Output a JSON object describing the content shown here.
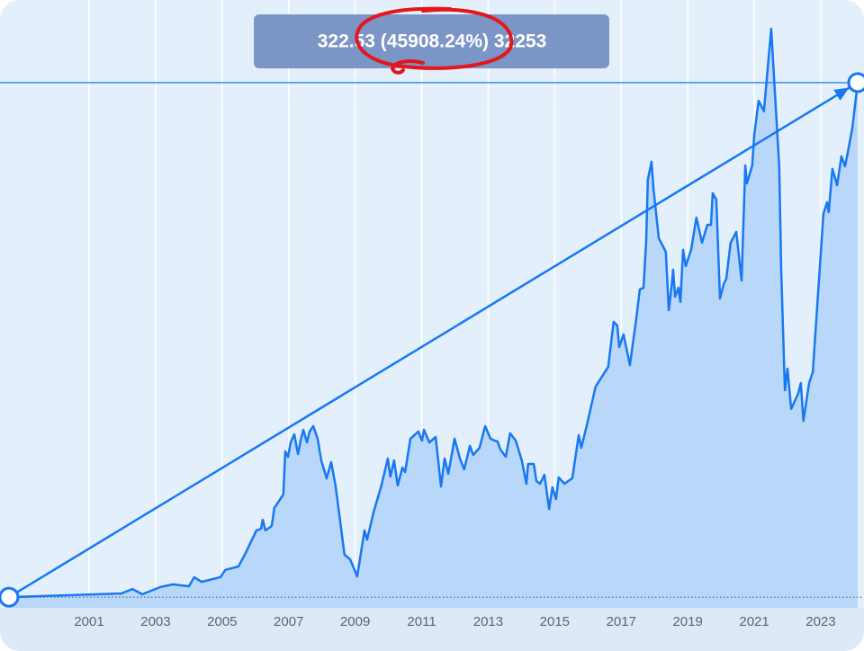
{
  "chart_data": {
    "type": "line",
    "annotation": "322.53 (45908.24%) 32253",
    "x": [
      1998.59,
      2001.97,
      2002.3,
      2002.6,
      2003.14,
      2003.52,
      2004.0,
      2004.16,
      2004.38,
      2004.95,
      2005.09,
      2005.49,
      2005.68,
      2006.03,
      2006.17,
      2006.22,
      2006.3,
      2006.49,
      2006.57,
      2006.84,
      2006.9,
      2006.98,
      2007.06,
      2007.17,
      2007.28,
      2007.36,
      2007.44,
      2007.55,
      2007.63,
      2007.74,
      2007.87,
      2007.98,
      2008.14,
      2008.28,
      2008.41,
      2008.68,
      2008.85,
      2009.06,
      2009.28,
      2009.36,
      2009.55,
      2009.79,
      2009.98,
      2010.06,
      2010.17,
      2010.28,
      2010.42,
      2010.5,
      2010.66,
      2010.9,
      2011.01,
      2011.07,
      2011.23,
      2011.42,
      2011.58,
      2011.69,
      2011.8,
      2011.99,
      2012.15,
      2012.28,
      2012.45,
      2012.55,
      2012.74,
      2012.91,
      2013.07,
      2013.2,
      2013.28,
      2013.37,
      2013.53,
      2013.66,
      2013.83,
      2014.01,
      2014.15,
      2014.2,
      2014.37,
      2014.45,
      2014.56,
      2014.69,
      2014.83,
      2014.93,
      2015.04,
      2015.12,
      2015.29,
      2015.53,
      2015.72,
      2015.8,
      2015.96,
      2016.23,
      2016.61,
      2016.77,
      2016.88,
      2016.94,
      2017.07,
      2017.26,
      2017.45,
      2017.56,
      2017.67,
      2017.75,
      2017.8,
      2017.91,
      2017.97,
      2018.13,
      2018.34,
      2018.43,
      2018.51,
      2018.56,
      2018.62,
      2018.72,
      2018.78,
      2018.86,
      2018.94,
      2019.1,
      2019.26,
      2019.43,
      2019.59,
      2019.7,
      2019.75,
      2019.86,
      2019.97,
      2020.08,
      2020.16,
      2020.29,
      2020.46,
      2020.62,
      2020.73,
      2020.78,
      2020.94,
      2021.0,
      2021.13,
      2021.29,
      2021.51,
      2021.75,
      2021.81,
      2021.92,
      2022.0,
      2022.11,
      2022.32,
      2022.4,
      2022.48,
      2022.65,
      2022.76,
      2023.08,
      2023.19,
      2023.24,
      2023.35,
      2023.49,
      2023.62,
      2023.73,
      2023.81,
      2023.95,
      2024.11
    ],
    "series": [
      {
        "color": "#1778f2",
        "fill": "#b9d7f8",
        "values": [
          0.7,
          3.0,
          5.8,
          2.5,
          7.0,
          8.7,
          7.5,
          13.2,
          10.3,
          13.2,
          17.7,
          19.9,
          27.3,
          42.5,
          43.6,
          49.2,
          42.5,
          45.3,
          56.6,
          65.0,
          92.1,
          88.7,
          97.7,
          102.8,
          90.4,
          98.8,
          105.6,
          97.7,
          104.5,
          107.9,
          100.0,
          86.4,
          75.2,
          85.3,
          70.7,
          27.3,
          24.4,
          13.7,
          42.5,
          36.8,
          53.8,
          70.7,
          87.6,
          76.3,
          86.4,
          70.7,
          81.9,
          79.1,
          100.0,
          104.5,
          98.8,
          105.6,
          97.7,
          101.1,
          70.1,
          87.6,
          78.0,
          100.0,
          87.6,
          80.8,
          95.5,
          89.8,
          94.3,
          107.9,
          100.0,
          98.8,
          98.3,
          93.2,
          88.7,
          103.4,
          98.8,
          86.4,
          71.8,
          84.2,
          84.2,
          73.5,
          71.8,
          77.4,
          56.0,
          69.5,
          62.2,
          75.7,
          71.8,
          75.2,
          102.2,
          94.3,
          107.9,
          132.7,
          145.1,
          173.3,
          171.0,
          157.5,
          165.4,
          146.2,
          175.0,
          193.6,
          194.7,
          224.0,
          262.3,
          273.6,
          256.7,
          225.7,
          217.2,
          180.6,
          194.7,
          206.0,
          189.0,
          194.7,
          185.7,
          218.4,
          208.2,
          218.4,
          238.6,
          222.9,
          234.1,
          234.1,
          253.9,
          249.9,
          187.9,
          196.9,
          200.3,
          222.9,
          229.6,
          199.2,
          271.3,
          260.1,
          271.3,
          290.5,
          311.9,
          305.2,
          357.0,
          270.8,
          206.0,
          130.4,
          143.9,
          118.6,
          128.2,
          134.9,
          111.2,
          134.9,
          141.7,
          240.9,
          248.2,
          242.0,
          269.1,
          258.9,
          277.0,
          270.8,
          279.2,
          295.0,
          323.23
        ]
      }
    ],
    "xlim": [
      1998.32,
      2024.3
    ],
    "ylim": [
      -6,
      375
    ],
    "xticks": [
      2001,
      2003,
      2005,
      2007,
      2009,
      2011,
      2013,
      2015,
      2017,
      2019,
      2021,
      2023
    ],
    "grid": true
  }
}
